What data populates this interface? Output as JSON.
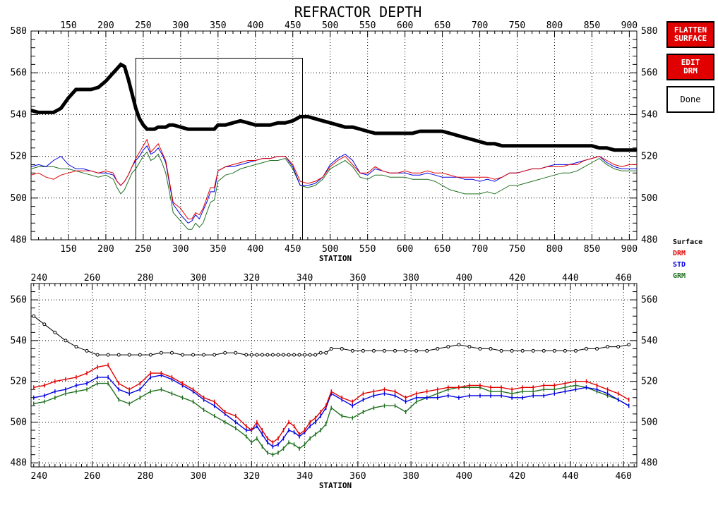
{
  "title": "REFRACTOR DEPTH",
  "buttons": {
    "flatten": "FLATTEN\nSURFACE",
    "edit": "EDIT\nDRM",
    "done": "Done"
  },
  "colors": {
    "surface": "#000000",
    "drm": "#e00000",
    "std": "#0000e0",
    "grm": "#207020",
    "button": "#e00000"
  },
  "chart_data": [
    {
      "type": "line",
      "title": "REFRACTOR DEPTH",
      "xlabel": "STATION",
      "xlim": [
        100,
        910
      ],
      "ylim": [
        480,
        580
      ],
      "xticks": [
        150,
        200,
        250,
        300,
        350,
        400,
        450,
        500,
        550,
        600,
        650,
        700,
        750,
        800,
        850,
        900
      ],
      "yticks": [
        480,
        500,
        520,
        540,
        560,
        580
      ],
      "grid": true,
      "zoom_box": {
        "x": [
          240,
          463
        ],
        "y": [
          480,
          567
        ]
      },
      "x": [
        100,
        110,
        120,
        130,
        140,
        150,
        160,
        170,
        180,
        190,
        200,
        210,
        215,
        220,
        225,
        230,
        235,
        240,
        245,
        250,
        255,
        260,
        265,
        270,
        275,
        280,
        285,
        290,
        300,
        310,
        315,
        320,
        325,
        330,
        335,
        340,
        345,
        350,
        360,
        370,
        380,
        390,
        400,
        410,
        420,
        430,
        440,
        450,
        460,
        470,
        480,
        490,
        500,
        510,
        520,
        530,
        540,
        550,
        560,
        570,
        580,
        590,
        600,
        610,
        620,
        630,
        640,
        650,
        660,
        670,
        680,
        690,
        700,
        710,
        720,
        730,
        740,
        750,
        760,
        770,
        780,
        790,
        800,
        810,
        820,
        830,
        840,
        850,
        860,
        870,
        880,
        890,
        900,
        910
      ],
      "series": [
        {
          "name": "Surface",
          "color": "#000000",
          "values": [
            542,
            541,
            541,
            541,
            543,
            548,
            552,
            552,
            552,
            553,
            556,
            560,
            562,
            564,
            563,
            557,
            550,
            543,
            538,
            535,
            533,
            533,
            533,
            534,
            534,
            534,
            535,
            535,
            534,
            533,
            533,
            533,
            533,
            533,
            533,
            533,
            533,
            535,
            535,
            536,
            537,
            536,
            535,
            535,
            535,
            536,
            536,
            537,
            539,
            539,
            538,
            537,
            536,
            535,
            534,
            534,
            533,
            532,
            531,
            531,
            531,
            531,
            531,
            531,
            532,
            532,
            532,
            532,
            531,
            530,
            529,
            528,
            527,
            526,
            526,
            525,
            525,
            525,
            525,
            525,
            525,
            525,
            525,
            525,
            525,
            525,
            525,
            525,
            524,
            524,
            523,
            523,
            523,
            523
          ]
        },
        {
          "name": "DRM",
          "color": "#e00000",
          "values": [
            511,
            512,
            510,
            509,
            511,
            512,
            513,
            513,
            513,
            512,
            513,
            512,
            508,
            506,
            508,
            511,
            515,
            519,
            522,
            525,
            528,
            522,
            524,
            526,
            522,
            518,
            508,
            498,
            495,
            490,
            490,
            493,
            492,
            495,
            500,
            505,
            505,
            513,
            515,
            516,
            517,
            518,
            518,
            519,
            519,
            520,
            520,
            516,
            508,
            507,
            508,
            510,
            515,
            518,
            520,
            516,
            512,
            512,
            515,
            513,
            512,
            512,
            513,
            512,
            512,
            513,
            512,
            512,
            511,
            510,
            510,
            510,
            510,
            510,
            509,
            510,
            512,
            512,
            513,
            514,
            514,
            515,
            515,
            515,
            516,
            516,
            518,
            519,
            520,
            518,
            516,
            515,
            516,
            516
          ]
        },
        {
          "name": "STD",
          "color": "#0000e0",
          "values": [
            515,
            516,
            515,
            518,
            520,
            516,
            514,
            514,
            513,
            512,
            512,
            511,
            508,
            506,
            508,
            511,
            515,
            518,
            520,
            523,
            525,
            521,
            522,
            524,
            521,
            517,
            507,
            497,
            492,
            488,
            489,
            492,
            490,
            494,
            498,
            503,
            503,
            513,
            515,
            515,
            516,
            517,
            518,
            519,
            519,
            520,
            520,
            515,
            506,
            506,
            507,
            510,
            516,
            519,
            521,
            518,
            512,
            511,
            514,
            513,
            512,
            512,
            512,
            511,
            511,
            512,
            511,
            510,
            510,
            510,
            509,
            509,
            508,
            509,
            508,
            510,
            512,
            512,
            513,
            514,
            514,
            515,
            516,
            516,
            516,
            517,
            518,
            519,
            520,
            517,
            515,
            514,
            514,
            514
          ]
        },
        {
          "name": "GRM",
          "color": "#207020",
          "values": [
            514,
            515,
            515,
            515,
            514,
            514,
            513,
            512,
            511,
            510,
            511,
            509,
            505,
            502,
            504,
            508,
            512,
            514,
            517,
            520,
            522,
            518,
            519,
            521,
            517,
            512,
            503,
            493,
            489,
            485,
            485,
            488,
            486,
            488,
            493,
            498,
            499,
            508,
            511,
            512,
            514,
            515,
            516,
            517,
            518,
            518,
            519,
            514,
            506,
            505,
            506,
            509,
            514,
            516,
            518,
            515,
            510,
            509,
            511,
            511,
            510,
            510,
            510,
            509,
            509,
            509,
            508,
            506,
            504,
            503,
            502,
            502,
            502,
            503,
            502,
            504,
            506,
            506,
            507,
            508,
            509,
            510,
            511,
            512,
            512,
            513,
            515,
            517,
            519,
            516,
            514,
            513,
            513,
            513
          ]
        }
      ]
    },
    {
      "type": "line",
      "xlabel": "STATION",
      "xlim": [
        237,
        465
      ],
      "ylim": [
        478,
        568
      ],
      "xticks": [
        240,
        260,
        280,
        300,
        320,
        340,
        360,
        380,
        400,
        420,
        440,
        460
      ],
      "yticks": [
        480,
        500,
        520,
        540,
        560
      ],
      "grid": true,
      "x": [
        238,
        242,
        246,
        250,
        254,
        258,
        262,
        266,
        270,
        274,
        278,
        282,
        286,
        290,
        294,
        298,
        302,
        306,
        310,
        314,
        318,
        320,
        322,
        324,
        326,
        328,
        330,
        332,
        334,
        336,
        338,
        340,
        342,
        344,
        346,
        348,
        350,
        354,
        358,
        362,
        366,
        370,
        374,
        378,
        382,
        386,
        390,
        394,
        398,
        402,
        406,
        410,
        414,
        418,
        422,
        426,
        430,
        434,
        438,
        442,
        446,
        450,
        454,
        458,
        462
      ],
      "series": [
        {
          "name": "Surface",
          "color": "#000000",
          "values": [
            552,
            548,
            544,
            540,
            537,
            535,
            533,
            533,
            533,
            533,
            533,
            533,
            534,
            534,
            533,
            533,
            533,
            533,
            534,
            534,
            533,
            533,
            533,
            533,
            533,
            533,
            533,
            533,
            533,
            533,
            533,
            533,
            533,
            533,
            534,
            534,
            536,
            536,
            535,
            535,
            535,
            535,
            535,
            535,
            535,
            535,
            536,
            537,
            538,
            537,
            536,
            536,
            535,
            535,
            535,
            535,
            535,
            535,
            535,
            535,
            536,
            536,
            537,
            537,
            538
          ]
        },
        {
          "name": "DRM",
          "color": "#e00000",
          "values": [
            517,
            518,
            520,
            521,
            522,
            524,
            527,
            528,
            519,
            516,
            519,
            524,
            524,
            522,
            519,
            516,
            512,
            510,
            505,
            503,
            498,
            496,
            500,
            496,
            492,
            490,
            492,
            496,
            500,
            498,
            494,
            496,
            500,
            502,
            505,
            508,
            515,
            512,
            510,
            514,
            515,
            516,
            515,
            512,
            514,
            515,
            516,
            517,
            517,
            518,
            518,
            517,
            517,
            516,
            517,
            517,
            518,
            518,
            519,
            520,
            520,
            518,
            516,
            514,
            511
          ]
        },
        {
          "name": "STD",
          "color": "#0000e0",
          "values": [
            512,
            513,
            515,
            516,
            518,
            519,
            522,
            522,
            516,
            514,
            516,
            522,
            523,
            521,
            518,
            515,
            511,
            508,
            504,
            500,
            496,
            496,
            498,
            494,
            490,
            488,
            489,
            492,
            496,
            495,
            493,
            495,
            498,
            500,
            503,
            507,
            514,
            511,
            508,
            511,
            513,
            514,
            513,
            510,
            512,
            512,
            512,
            513,
            512,
            513,
            513,
            513,
            513,
            512,
            512,
            513,
            513,
            514,
            515,
            516,
            517,
            516,
            514,
            511,
            508
          ]
        },
        {
          "name": "GRM",
          "color": "#207020",
          "values": [
            509,
            510,
            512,
            514,
            515,
            516,
            519,
            519,
            511,
            509,
            512,
            515,
            516,
            514,
            512,
            510,
            506,
            503,
            500,
            497,
            493,
            490,
            492,
            488,
            485,
            484,
            485,
            487,
            490,
            489,
            487,
            489,
            492,
            494,
            496,
            499,
            507,
            503,
            502,
            505,
            507,
            508,
            508,
            505,
            510,
            512,
            514,
            516,
            517,
            517,
            517,
            515,
            515,
            514,
            515,
            515,
            516,
            516,
            517,
            518,
            517,
            515,
            513,
            511,
            508
          ]
        }
      ]
    }
  ],
  "legend": [
    "Surface",
    "DRM",
    "STD",
    "GRM"
  ]
}
